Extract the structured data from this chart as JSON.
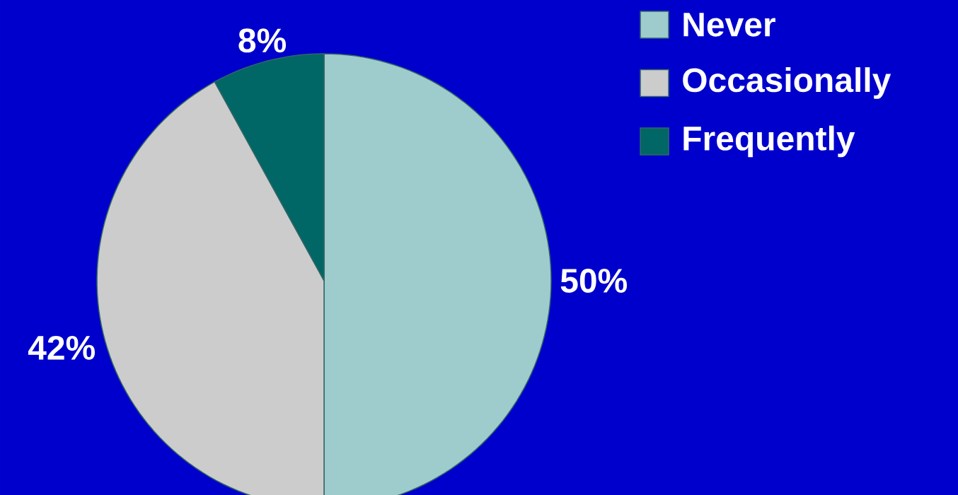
{
  "chart_data": {
    "type": "pie",
    "categories": [
      "Never",
      "Occasionally",
      "Frequently"
    ],
    "values": [
      50,
      42,
      8
    ],
    "value_labels": [
      "50%",
      "42%",
      "8%"
    ],
    "colors": [
      "#9ecccc",
      "#cccccc",
      "#006666"
    ],
    "legend": "top right"
  }
}
